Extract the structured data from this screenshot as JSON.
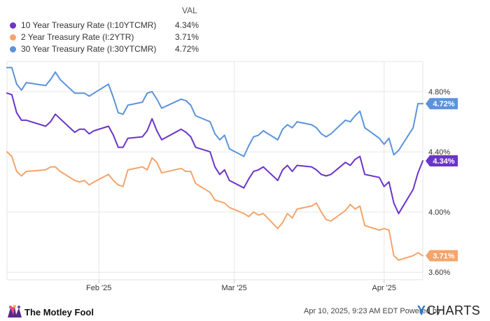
{
  "legend": {
    "header": "VAL",
    "items": [
      {
        "name": "10 Year Treasury Rate (I:10YTCMR)",
        "value": "4.34%",
        "color": "#6b35c9"
      },
      {
        "name": "2 Year Treasury Rate (I:2YTR)",
        "value": "3.71%",
        "color": "#f5a46b"
      },
      {
        "name": "30 Year Treasury Rate (I:30YTCMR)",
        "value": "4.72%",
        "color": "#5b93dc"
      }
    ]
  },
  "chart_data": {
    "type": "line",
    "x_dates": [
      "2025-01-13",
      "2025-01-14",
      "2025-01-15",
      "2025-01-16",
      "2025-01-17",
      "2025-01-21",
      "2025-01-22",
      "2025-01-23",
      "2025-01-24",
      "2025-01-27",
      "2025-01-28",
      "2025-01-29",
      "2025-01-30",
      "2025-01-31",
      "2025-02-03",
      "2025-02-04",
      "2025-02-05",
      "2025-02-06",
      "2025-02-07",
      "2025-02-10",
      "2025-02-11",
      "2025-02-12",
      "2025-02-13",
      "2025-02-14",
      "2025-02-18",
      "2025-02-19",
      "2025-02-20",
      "2025-02-21",
      "2025-02-24",
      "2025-02-25",
      "2025-02-26",
      "2025-02-27",
      "2025-02-28",
      "2025-03-03",
      "2025-03-04",
      "2025-03-05",
      "2025-03-06",
      "2025-03-07",
      "2025-03-10",
      "2025-03-11",
      "2025-03-12",
      "2025-03-13",
      "2025-03-14",
      "2025-03-17",
      "2025-03-18",
      "2025-03-19",
      "2025-03-20",
      "2025-03-21",
      "2025-03-24",
      "2025-03-25",
      "2025-03-26",
      "2025-03-27",
      "2025-03-28",
      "2025-03-31",
      "2025-04-01",
      "2025-04-02",
      "2025-04-03",
      "2025-04-04",
      "2025-04-07",
      "2025-04-08",
      "2025-04-09"
    ],
    "series": [
      {
        "name": "10 Year Treasury Rate (I:10YTCMR)",
        "color": "#6b35c9",
        "values": [
          4.79,
          4.78,
          4.66,
          4.61,
          4.61,
          4.57,
          4.6,
          4.65,
          4.62,
          4.53,
          4.55,
          4.55,
          4.52,
          4.54,
          4.57,
          4.51,
          4.43,
          4.43,
          4.49,
          4.5,
          4.54,
          4.62,
          4.54,
          4.48,
          4.55,
          4.53,
          4.5,
          4.43,
          4.4,
          4.3,
          4.25,
          4.28,
          4.21,
          4.16,
          4.22,
          4.27,
          4.28,
          4.3,
          4.21,
          4.28,
          4.31,
          4.27,
          4.31,
          4.3,
          4.28,
          4.25,
          4.24,
          4.25,
          4.33,
          4.31,
          4.35,
          4.37,
          4.25,
          4.23,
          4.17,
          4.2,
          4.06,
          3.99,
          4.15,
          4.26,
          4.34
        ]
      },
      {
        "name": "2 Year Treasury Rate (I:2YTR)",
        "color": "#f5a46b",
        "values": [
          4.4,
          4.37,
          4.27,
          4.24,
          4.27,
          4.28,
          4.3,
          4.3,
          4.27,
          4.21,
          4.2,
          4.21,
          4.18,
          4.2,
          4.25,
          4.21,
          4.18,
          4.17,
          4.28,
          4.3,
          4.28,
          4.36,
          4.33,
          4.26,
          4.29,
          4.27,
          4.27,
          4.19,
          4.13,
          4.08,
          4.07,
          4.06,
          4.03,
          3.99,
          3.97,
          4.0,
          3.98,
          3.99,
          3.89,
          3.93,
          3.99,
          3.96,
          4.02,
          4.04,
          4.06,
          4.0,
          3.95,
          3.94,
          4.01,
          4.05,
          4.02,
          4.04,
          3.91,
          3.88,
          3.89,
          3.88,
          3.71,
          3.68,
          3.71,
          3.73,
          3.71
        ]
      },
      {
        "name": "30 Year Treasury Rate (I:30YTCMR)",
        "color": "#5b93dc",
        "values": [
          4.96,
          4.96,
          4.85,
          4.81,
          4.86,
          4.84,
          4.88,
          4.93,
          4.88,
          4.79,
          4.79,
          4.79,
          4.77,
          4.79,
          4.85,
          4.76,
          4.66,
          4.65,
          4.71,
          4.73,
          4.79,
          4.8,
          4.75,
          4.69,
          4.75,
          4.74,
          4.71,
          4.64,
          4.6,
          4.52,
          4.48,
          4.51,
          4.42,
          4.37,
          4.44,
          4.5,
          4.51,
          4.54,
          4.48,
          4.55,
          4.58,
          4.56,
          4.6,
          4.58,
          4.56,
          4.52,
          4.5,
          4.52,
          4.61,
          4.6,
          4.64,
          4.67,
          4.56,
          4.49,
          4.45,
          4.49,
          4.38,
          4.41,
          4.56,
          4.72,
          4.72
        ]
      }
    ],
    "title": "",
    "xlabel": "",
    "ylabel": "",
    "x_ticks": [
      {
        "date": "2025-02-01",
        "label": "Feb '25"
      },
      {
        "date": "2025-03-01",
        "label": "Mar '25"
      },
      {
        "date": "2025-04-01",
        "label": "Apr '25"
      }
    ],
    "y_ticks": [
      {
        "value": 3.6,
        "label": "3.60%"
      },
      {
        "value": 4.0,
        "label": "4.00%"
      },
      {
        "value": 4.4,
        "label": "4.40%"
      },
      {
        "value": 4.8,
        "label": "4.80%"
      }
    ],
    "ylim": [
      3.55,
      5.0
    ],
    "end_labels": [
      "4.34%",
      "3.71%",
      "4.72%"
    ],
    "grid": true,
    "legend_position": "top-left"
  },
  "footer": {
    "logo_text": "The Motley Fool",
    "note": "Apr 10, 2025, 9:23 AM EDT Powered by",
    "ycharts_y": "Y",
    "ycharts_rest": "CHARTS"
  }
}
